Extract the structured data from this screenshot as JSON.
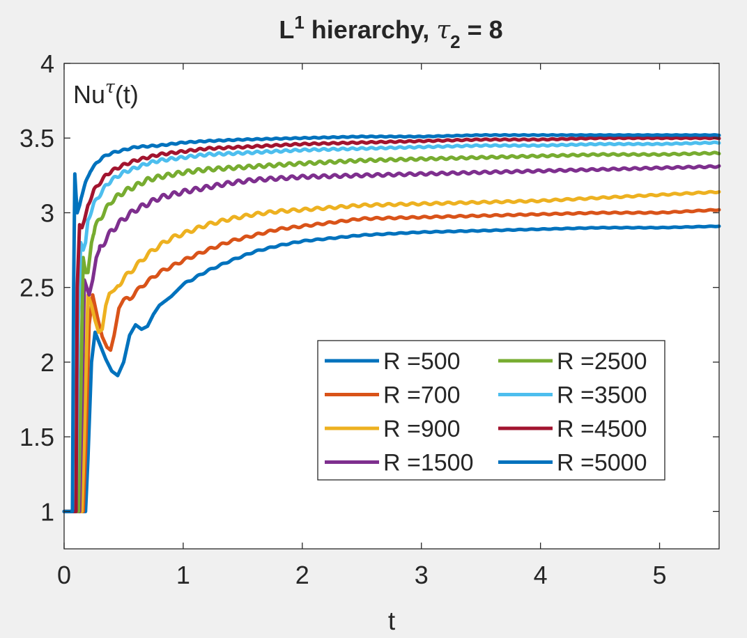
{
  "chart_data": {
    "type": "line",
    "title": {
      "prefix": "L",
      "prefix_sup": "1",
      "middle": " hierarchy, ",
      "symbol": "τ",
      "symbol_sub": "2",
      "suffix": " = 8"
    },
    "annotation": {
      "base": "Nu",
      "sup": "τ",
      "tail": "(t)"
    },
    "xlabel": "t",
    "ylabel": "",
    "xlim": [
      0,
      5.5
    ],
    "ylim": [
      0.75,
      4
    ],
    "xticks": [
      0,
      1,
      2,
      3,
      4,
      5
    ],
    "yticks": [
      1,
      1.5,
      2,
      2.5,
      3,
      3.5,
      4
    ],
    "xtick_labels": [
      "0",
      "1",
      "2",
      "3",
      "4",
      "5"
    ],
    "ytick_labels": [
      "1",
      "1.5",
      "2",
      "2.5",
      "3",
      "3.5",
      "4"
    ],
    "grid": false,
    "legend_placement": "lower-right",
    "legend_columns": 2,
    "series": [
      {
        "name": "R =500",
        "color": "#0072bd",
        "points": [
          [
            0,
            1
          ],
          [
            0.18,
            1.0
          ],
          [
            0.2,
            1.35
          ],
          [
            0.23,
            2.0
          ],
          [
            0.26,
            2.2
          ],
          [
            0.3,
            2.12
          ],
          [
            0.35,
            2.02
          ],
          [
            0.4,
            1.94
          ],
          [
            0.45,
            1.91
          ],
          [
            0.5,
            2.0
          ],
          [
            0.55,
            2.18
          ],
          [
            0.6,
            2.25
          ],
          [
            0.65,
            2.22
          ],
          [
            0.7,
            2.24
          ],
          [
            0.75,
            2.32
          ],
          [
            0.8,
            2.38
          ],
          [
            0.9,
            2.44
          ],
          [
            1.0,
            2.52
          ],
          [
            1.2,
            2.61
          ],
          [
            1.4,
            2.68
          ],
          [
            1.6,
            2.74
          ],
          [
            1.8,
            2.78
          ],
          [
            2.0,
            2.81
          ],
          [
            2.5,
            2.85
          ],
          [
            3.0,
            2.87
          ],
          [
            3.5,
            2.88
          ],
          [
            4.0,
            2.89
          ],
          [
            4.5,
            2.9
          ],
          [
            5.0,
            2.9
          ],
          [
            5.5,
            2.91
          ]
        ],
        "wiggle": {
          "amp": 0.006,
          "period": 0.1,
          "from": 1.0
        }
      },
      {
        "name": "R =700",
        "color": "#d95319",
        "points": [
          [
            0,
            1
          ],
          [
            0.16,
            1.0
          ],
          [
            0.18,
            1.4
          ],
          [
            0.21,
            2.25
          ],
          [
            0.24,
            2.45
          ],
          [
            0.28,
            2.3
          ],
          [
            0.32,
            2.17
          ],
          [
            0.36,
            2.1
          ],
          [
            0.39,
            2.08
          ],
          [
            0.42,
            2.18
          ],
          [
            0.46,
            2.36
          ],
          [
            0.5,
            2.42
          ],
          [
            0.55,
            2.42
          ],
          [
            0.6,
            2.47
          ],
          [
            0.7,
            2.54
          ],
          [
            0.8,
            2.6
          ],
          [
            0.9,
            2.64
          ],
          [
            1.0,
            2.68
          ],
          [
            1.2,
            2.75
          ],
          [
            1.4,
            2.81
          ],
          [
            1.6,
            2.85
          ],
          [
            1.8,
            2.89
          ],
          [
            2.0,
            2.91
          ],
          [
            2.5,
            2.96
          ],
          [
            3.0,
            2.97
          ],
          [
            3.5,
            2.98
          ],
          [
            4.0,
            2.99
          ],
          [
            4.5,
            3.0
          ],
          [
            5.0,
            3.0
          ],
          [
            5.5,
            3.02
          ]
        ],
        "wiggle": {
          "amp": 0.012,
          "period": 0.1,
          "from": 0.5
        }
      },
      {
        "name": "R =900",
        "color": "#edb120",
        "points": [
          [
            0,
            1
          ],
          [
            0.15,
            1.0
          ],
          [
            0.17,
            1.5
          ],
          [
            0.2,
            2.45
          ],
          [
            0.23,
            2.38
          ],
          [
            0.26,
            2.28
          ],
          [
            0.29,
            2.2
          ],
          [
            0.32,
            2.22
          ],
          [
            0.35,
            2.38
          ],
          [
            0.38,
            2.46
          ],
          [
            0.42,
            2.48
          ],
          [
            0.5,
            2.56
          ],
          [
            0.6,
            2.64
          ],
          [
            0.7,
            2.72
          ],
          [
            0.8,
            2.78
          ],
          [
            0.9,
            2.83
          ],
          [
            1.0,
            2.86
          ],
          [
            1.2,
            2.92
          ],
          [
            1.4,
            2.96
          ],
          [
            1.6,
            2.99
          ],
          [
            1.8,
            3.01
          ],
          [
            2.0,
            3.02
          ],
          [
            2.5,
            3.05
          ],
          [
            3.0,
            3.06
          ],
          [
            3.5,
            3.07
          ],
          [
            4.0,
            3.08
          ],
          [
            4.5,
            3.1
          ],
          [
            5.0,
            3.12
          ],
          [
            5.5,
            3.14
          ]
        ],
        "wiggle": {
          "amp": 0.016,
          "period": 0.1,
          "from": 0.45
        }
      },
      {
        "name": "R =1500",
        "color": "#7e2f8e",
        "points": [
          [
            0,
            1
          ],
          [
            0.13,
            1.0
          ],
          [
            0.15,
            1.7
          ],
          [
            0.17,
            2.55
          ],
          [
            0.19,
            2.5
          ],
          [
            0.21,
            2.45
          ],
          [
            0.24,
            2.55
          ],
          [
            0.27,
            2.7
          ],
          [
            0.3,
            2.76
          ],
          [
            0.35,
            2.82
          ],
          [
            0.4,
            2.88
          ],
          [
            0.5,
            2.96
          ],
          [
            0.6,
            3.02
          ],
          [
            0.7,
            3.06
          ],
          [
            0.8,
            3.1
          ],
          [
            1.0,
            3.14
          ],
          [
            1.2,
            3.17
          ],
          [
            1.4,
            3.2
          ],
          [
            1.6,
            3.22
          ],
          [
            1.8,
            3.23
          ],
          [
            2.0,
            3.24
          ],
          [
            2.5,
            3.25
          ],
          [
            3.0,
            3.26
          ],
          [
            3.5,
            3.27
          ],
          [
            4.0,
            3.28
          ],
          [
            4.5,
            3.29
          ],
          [
            5.0,
            3.3
          ],
          [
            5.5,
            3.31
          ]
        ],
        "wiggle": {
          "amp": 0.02,
          "period": 0.09,
          "from": 0.3
        }
      },
      {
        "name": "R =2500",
        "color": "#77ac30",
        "points": [
          [
            0,
            1
          ],
          [
            0.12,
            1.0
          ],
          [
            0.14,
            1.8
          ],
          [
            0.16,
            2.7
          ],
          [
            0.18,
            2.6
          ],
          [
            0.2,
            2.6
          ],
          [
            0.23,
            2.8
          ],
          [
            0.26,
            2.9
          ],
          [
            0.3,
            2.96
          ],
          [
            0.35,
            3.02
          ],
          [
            0.4,
            3.08
          ],
          [
            0.5,
            3.14
          ],
          [
            0.6,
            3.18
          ],
          [
            0.7,
            3.22
          ],
          [
            0.8,
            3.24
          ],
          [
            1.0,
            3.27
          ],
          [
            1.2,
            3.29
          ],
          [
            1.4,
            3.3
          ],
          [
            1.6,
            3.31
          ],
          [
            1.8,
            3.32
          ],
          [
            2.0,
            3.33
          ],
          [
            2.5,
            3.35
          ],
          [
            3.0,
            3.36
          ],
          [
            3.5,
            3.37
          ],
          [
            4.0,
            3.38
          ],
          [
            4.5,
            3.39
          ],
          [
            5.0,
            3.39
          ],
          [
            5.5,
            3.4
          ]
        ],
        "wiggle": {
          "amp": 0.018,
          "period": 0.085,
          "from": 0.25
        }
      },
      {
        "name": "R =3500",
        "color": "#4dbeee",
        "points": [
          [
            0,
            1
          ],
          [
            0.1,
            1.0
          ],
          [
            0.12,
            2.3
          ],
          [
            0.14,
            2.8
          ],
          [
            0.16,
            2.75
          ],
          [
            0.18,
            2.8
          ],
          [
            0.2,
            2.95
          ],
          [
            0.25,
            3.06
          ],
          [
            0.3,
            3.12
          ],
          [
            0.35,
            3.18
          ],
          [
            0.4,
            3.22
          ],
          [
            0.5,
            3.27
          ],
          [
            0.6,
            3.3
          ],
          [
            0.7,
            3.33
          ],
          [
            0.8,
            3.35
          ],
          [
            1.0,
            3.37
          ],
          [
            1.2,
            3.39
          ],
          [
            1.5,
            3.4
          ],
          [
            2.0,
            3.42
          ],
          [
            2.5,
            3.43
          ],
          [
            3.0,
            3.44
          ],
          [
            3.5,
            3.45
          ],
          [
            4.0,
            3.45
          ],
          [
            4.5,
            3.46
          ],
          [
            5.0,
            3.46
          ],
          [
            5.5,
            3.47
          ]
        ],
        "wiggle": {
          "amp": 0.012,
          "period": 0.08,
          "from": 0.2
        }
      },
      {
        "name": "R =4500",
        "color": "#a2142f",
        "points": [
          [
            0,
            1
          ],
          [
            0.1,
            1.0
          ],
          [
            0.11,
            2.5
          ],
          [
            0.13,
            2.92
          ],
          [
            0.15,
            2.9
          ],
          [
            0.17,
            2.95
          ],
          [
            0.2,
            3.05
          ],
          [
            0.25,
            3.15
          ],
          [
            0.3,
            3.2
          ],
          [
            0.35,
            3.25
          ],
          [
            0.4,
            3.28
          ],
          [
            0.5,
            3.32
          ],
          [
            0.6,
            3.35
          ],
          [
            0.7,
            3.37
          ],
          [
            0.8,
            3.39
          ],
          [
            1.0,
            3.41
          ],
          [
            1.2,
            3.43
          ],
          [
            1.5,
            3.44
          ],
          [
            2.0,
            3.46
          ],
          [
            2.5,
            3.47
          ],
          [
            3.0,
            3.48
          ],
          [
            3.5,
            3.49
          ],
          [
            4.0,
            3.49
          ],
          [
            4.5,
            3.5
          ],
          [
            5.0,
            3.5
          ],
          [
            5.5,
            3.5
          ]
        ],
        "wiggle": {
          "amp": 0.01,
          "period": 0.08,
          "from": 0.2
        }
      },
      {
        "name": "R =5000",
        "color": "#0072bd",
        "points": [
          [
            0,
            1
          ],
          [
            0.07,
            1.0
          ],
          [
            0.08,
            2.5
          ],
          [
            0.09,
            3.26
          ],
          [
            0.1,
            3.12
          ],
          [
            0.11,
            3.0
          ],
          [
            0.13,
            3.05
          ],
          [
            0.15,
            3.12
          ],
          [
            0.18,
            3.2
          ],
          [
            0.22,
            3.28
          ],
          [
            0.27,
            3.33
          ],
          [
            0.32,
            3.37
          ],
          [
            0.4,
            3.4
          ],
          [
            0.5,
            3.42
          ],
          [
            0.6,
            3.44
          ],
          [
            0.8,
            3.45
          ],
          [
            1.0,
            3.47
          ],
          [
            1.2,
            3.48
          ],
          [
            1.5,
            3.49
          ],
          [
            2.0,
            3.5
          ],
          [
            2.5,
            3.51
          ],
          [
            3.0,
            3.51
          ],
          [
            3.5,
            3.52
          ],
          [
            4.0,
            3.52
          ],
          [
            4.5,
            3.52
          ],
          [
            5.0,
            3.52
          ],
          [
            5.5,
            3.52
          ]
        ],
        "wiggle": {
          "amp": 0.006,
          "period": 0.08,
          "from": 0.15
        }
      }
    ]
  }
}
